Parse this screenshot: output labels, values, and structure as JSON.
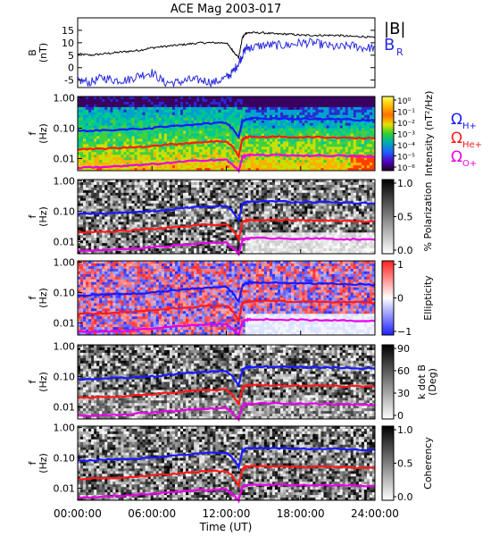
{
  "page": {
    "title": "ACE Mag 2003-017"
  },
  "chart_data": {
    "type": "line",
    "title": "ACE Mag 2003-017",
    "x_axis": {
      "label": "Time (UT)",
      "range_hours": [
        0,
        24
      ],
      "tick_labels": [
        "00:00:00",
        "06:00:00",
        "12:00:00",
        "18:00:00",
        "24:00:00"
      ],
      "tick_hours": [
        0,
        6,
        12,
        18,
        24
      ]
    },
    "panels": [
      {
        "id": "field",
        "type": "line",
        "ylabel": "B (nT)",
        "ylabel_line1": "B",
        "ylabel_line2": "(nT)",
        "ylim": [
          -8,
          20
        ],
        "yticks": [
          -5,
          0,
          5,
          10,
          15
        ],
        "legend": [
          {
            "label": "|B|",
            "color": "#000000"
          },
          {
            "label": "B",
            "sub": "R",
            "color": "#2a2ae0"
          }
        ],
        "series": [
          {
            "name": "|B|",
            "color": "#000000",
            "x": [
              0,
              1,
              2,
              3,
              4,
              5,
              6,
              7,
              8,
              9,
              10,
              11,
              12,
              12.5,
              13,
              13.3,
              13.6,
              14,
              15,
              16,
              17,
              18,
              19,
              20,
              21,
              22,
              23,
              24
            ],
            "y": [
              5.5,
              5,
              5.5,
              6,
              6.5,
              7,
              8,
              8.5,
              9,
              9.5,
              10,
              10,
              10,
              7,
              4,
              12,
              14,
              14,
              14,
              13.5,
              13.5,
              13,
              13,
              13,
              13,
              12.5,
              12.5,
              12
            ]
          },
          {
            "name": "B_R",
            "color": "#2a2ae0",
            "x": [
              0,
              1,
              2,
              3,
              4,
              5,
              6,
              7,
              8,
              9,
              10,
              11,
              12,
              12.5,
              13,
              13.3,
              13.6,
              14,
              15,
              16,
              17,
              18,
              19,
              20,
              21,
              22,
              23,
              24
            ],
            "y": [
              -5,
              -6,
              -4,
              -5,
              -5,
              -3,
              -2,
              -6,
              -6,
              -5,
              -5,
              -6,
              -4,
              -2,
              2,
              5,
              8,
              8,
              9,
              9,
              9,
              10,
              10,
              9,
              8,
              9,
              8,
              8
            ]
          }
        ]
      },
      {
        "id": "intensity",
        "type": "heatmap",
        "ylabel": "f (Hz)",
        "colorbar_label": "Intensity (nT²/Hz)",
        "colorbar_ticks": [
          "10⁰",
          "10⁻¹",
          "10⁻²",
          "10⁻³",
          "10⁻⁴",
          "10⁻⁵",
          "10⁻⁶"
        ],
        "legend": [
          {
            "label": "Ω",
            "sub": "H+",
            "color": "#1a1aff"
          },
          {
            "label": "Ω",
            "sub": "He+",
            "color": "#ff1a1a"
          },
          {
            "label": "Ω",
            "sub": "O+",
            "color": "#e800e8"
          }
        ]
      },
      {
        "id": "polarization",
        "type": "heatmap",
        "ylabel": "f (Hz)",
        "colorbar_label": "% Polarization",
        "colorbar_ticks": [
          "1.0",
          "0.5",
          "0.0"
        ]
      },
      {
        "id": "ellipticity",
        "type": "heatmap",
        "ylabel": "f (Hz)",
        "colorbar_label": "Ellipticity",
        "colorbar_ticks": [
          "1",
          "0",
          "−1"
        ]
      },
      {
        "id": "kdotb",
        "type": "heatmap",
        "ylabel": "f (Hz)",
        "colorbar_label": "k dot B (Deg)",
        "colorbar_label_line1": "k dot B",
        "colorbar_label_line2": "(Deg)",
        "colorbar_ticks": [
          "90",
          "60",
          "30",
          "0"
        ]
      },
      {
        "id": "coherency",
        "type": "heatmap",
        "ylabel": "f (Hz)",
        "colorbar_label": "Coherency",
        "colorbar_ticks": [
          "1.0",
          "0.5",
          "0.0"
        ]
      }
    ],
    "freq_axis": {
      "scale": "log",
      "range_hz": [
        0.004,
        1.1
      ],
      "tick_labels": [
        "1.00",
        "0.10",
        "0.01"
      ],
      "tick_values": [
        1.0,
        0.1,
        0.01
      ]
    },
    "gyrofrequency_lines": [
      {
        "name": "ΩH+",
        "color": "#1a1aff",
        "x": [
          0,
          2,
          4,
          6,
          8,
          10,
          12,
          12.5,
          13,
          13.3,
          13.6,
          14,
          16,
          18,
          20,
          22,
          24
        ],
        "y": [
          0.08,
          0.085,
          0.09,
          0.1,
          0.12,
          0.14,
          0.15,
          0.1,
          0.05,
          0.17,
          0.2,
          0.21,
          0.21,
          0.2,
          0.2,
          0.19,
          0.18
        ]
      },
      {
        "name": "ΩHe+",
        "color": "#ff1a1a",
        "x": [
          0,
          2,
          4,
          6,
          8,
          10,
          12,
          12.5,
          13,
          13.3,
          13.6,
          14,
          16,
          18,
          20,
          22,
          24
        ],
        "y": [
          0.02,
          0.021,
          0.023,
          0.026,
          0.03,
          0.035,
          0.037,
          0.025,
          0.012,
          0.043,
          0.05,
          0.052,
          0.052,
          0.05,
          0.05,
          0.048,
          0.046
        ]
      },
      {
        "name": "ΩO+",
        "color": "#e800e8",
        "x": [
          0,
          2,
          4,
          6,
          8,
          10,
          12,
          12.5,
          13,
          13.3,
          13.6,
          14,
          16,
          18,
          20,
          22,
          24
        ],
        "y": [
          0.005,
          0.0053,
          0.0057,
          0.0065,
          0.0075,
          0.0088,
          0.0092,
          0.0062,
          0.004,
          0.011,
          0.0125,
          0.013,
          0.013,
          0.0125,
          0.0125,
          0.012,
          0.0115
        ]
      }
    ],
    "colors": {
      "frame": "#000000",
      "bmag": "#000000",
      "br": "#2a2ae0",
      "h_plus": "#1a1aff",
      "he_plus": "#ff1a1a",
      "o_plus": "#e800e8"
    }
  }
}
